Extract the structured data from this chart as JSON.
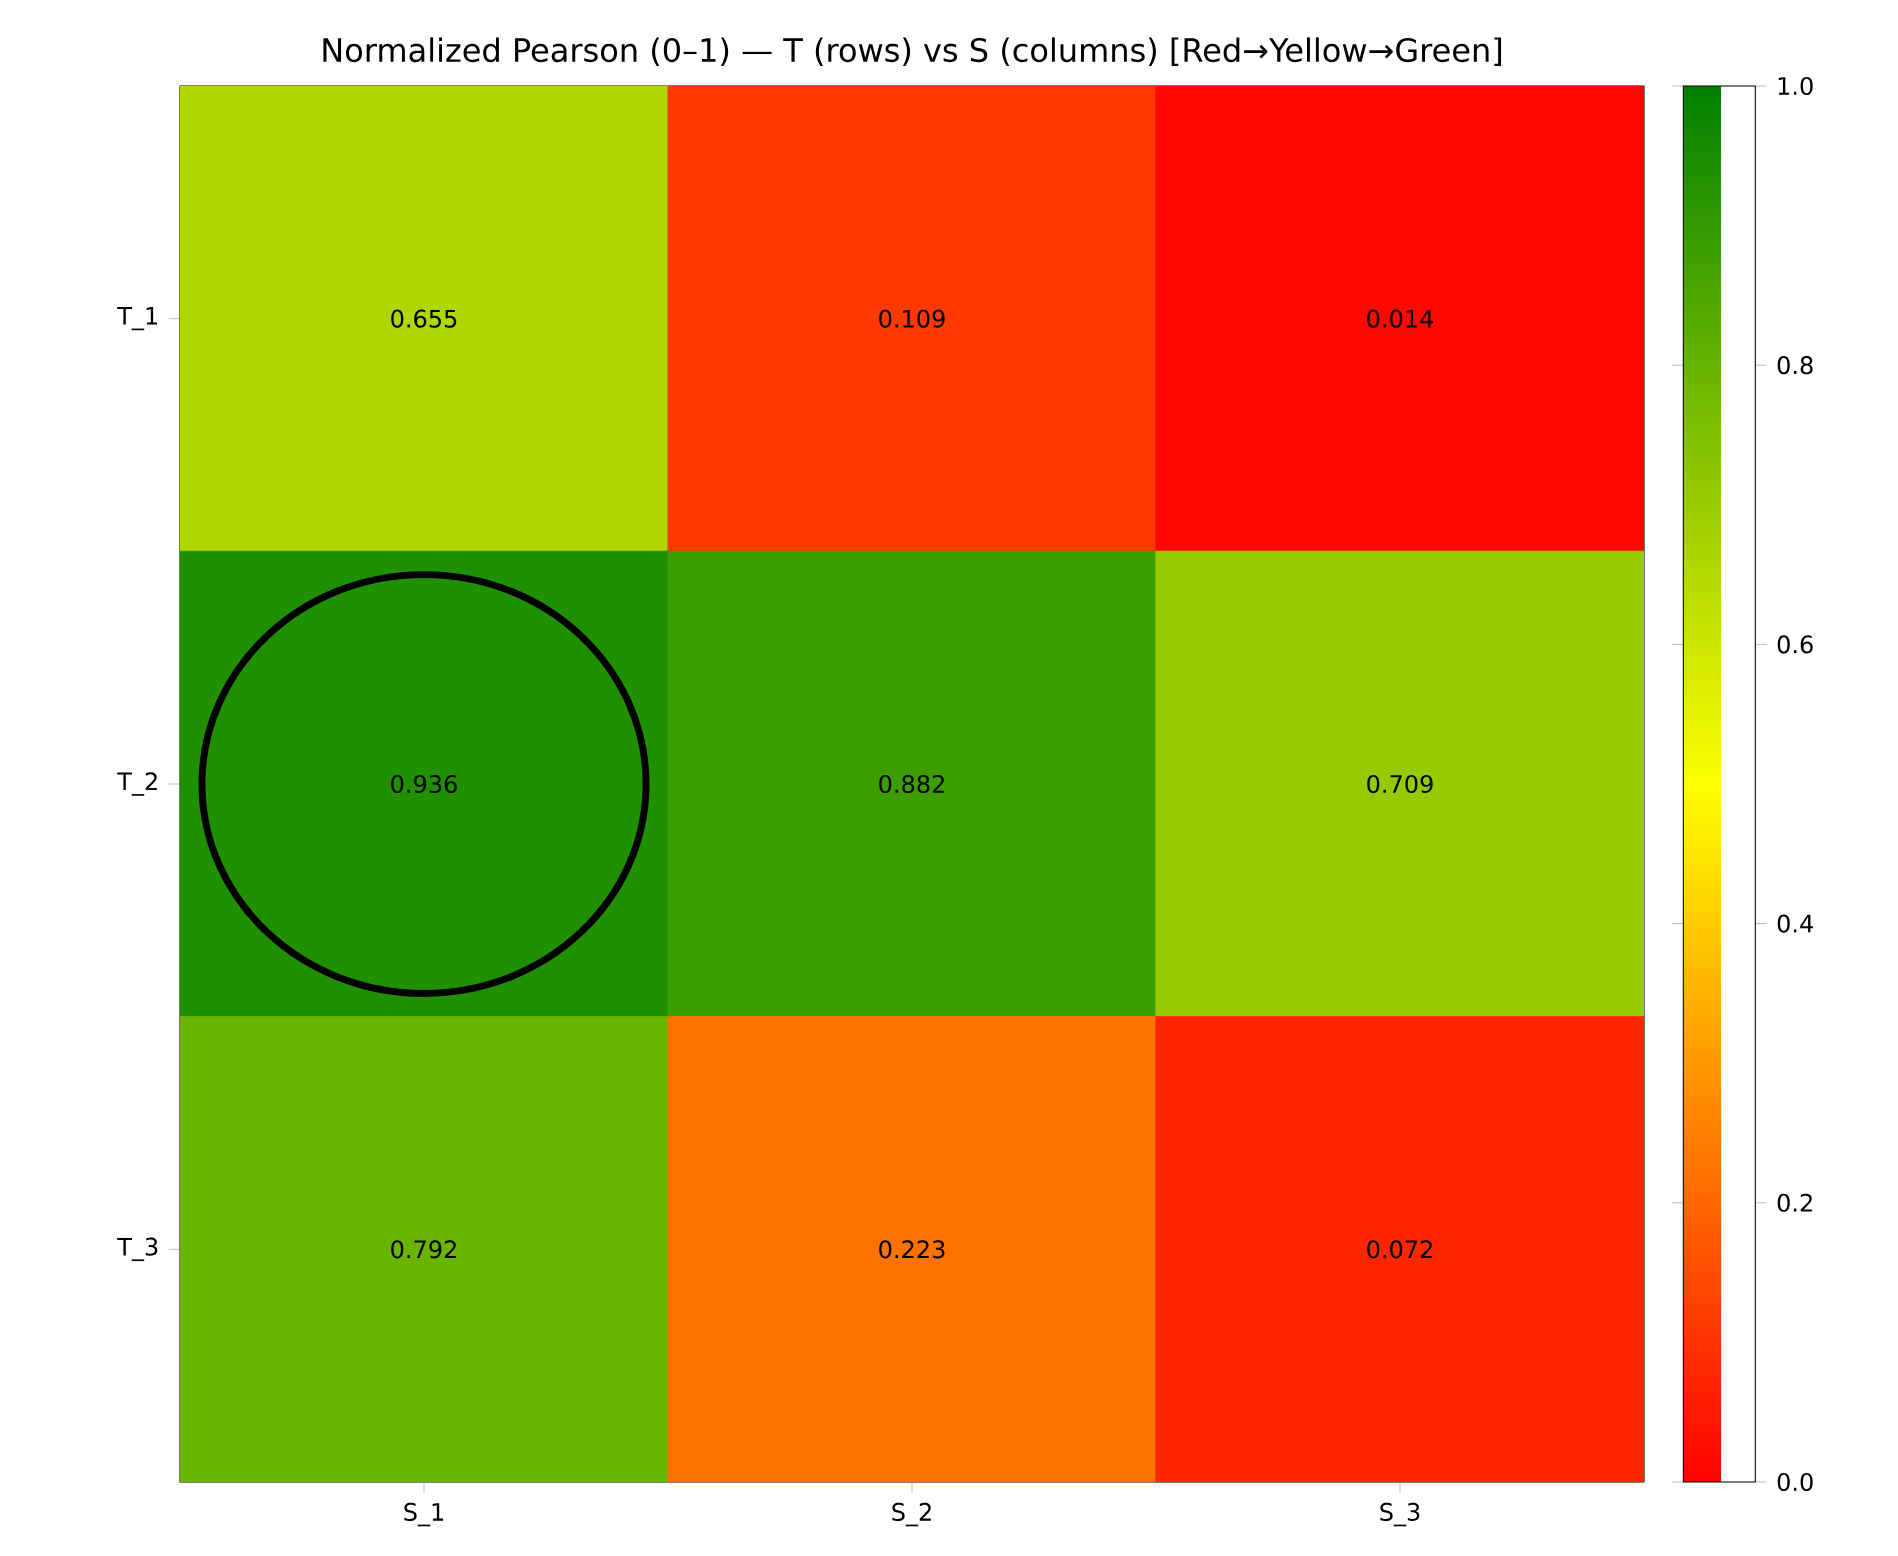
{
  "chart_data": {
    "type": "heatmap",
    "title": "Normalized Pearson (0–1) — T (rows) vs S (columns) [Red→Yellow→Green]",
    "categories": [
      "S_1",
      "S_2",
      "S_3"
    ],
    "y_categories": [
      "T_1",
      "T_2",
      "T_3"
    ],
    "cells": [
      [
        0.655,
        0.109,
        0.014
      ],
      [
        0.936,
        0.882,
        0.709
      ],
      [
        0.792,
        0.223,
        0.072
      ]
    ],
    "data_labels": true,
    "clim": [
      0,
      1
    ],
    "cticks": [
      {
        "value": 0,
        "label": "0.0"
      },
      {
        "value": 0.2,
        "label": "0.2"
      },
      {
        "value": 0.4,
        "label": "0.4"
      },
      {
        "value": 0.6,
        "label": "0.6"
      },
      {
        "value": 0.8,
        "label": "0.8"
      },
      {
        "value": 1,
        "label": "1.0"
      }
    ]
  }
}
